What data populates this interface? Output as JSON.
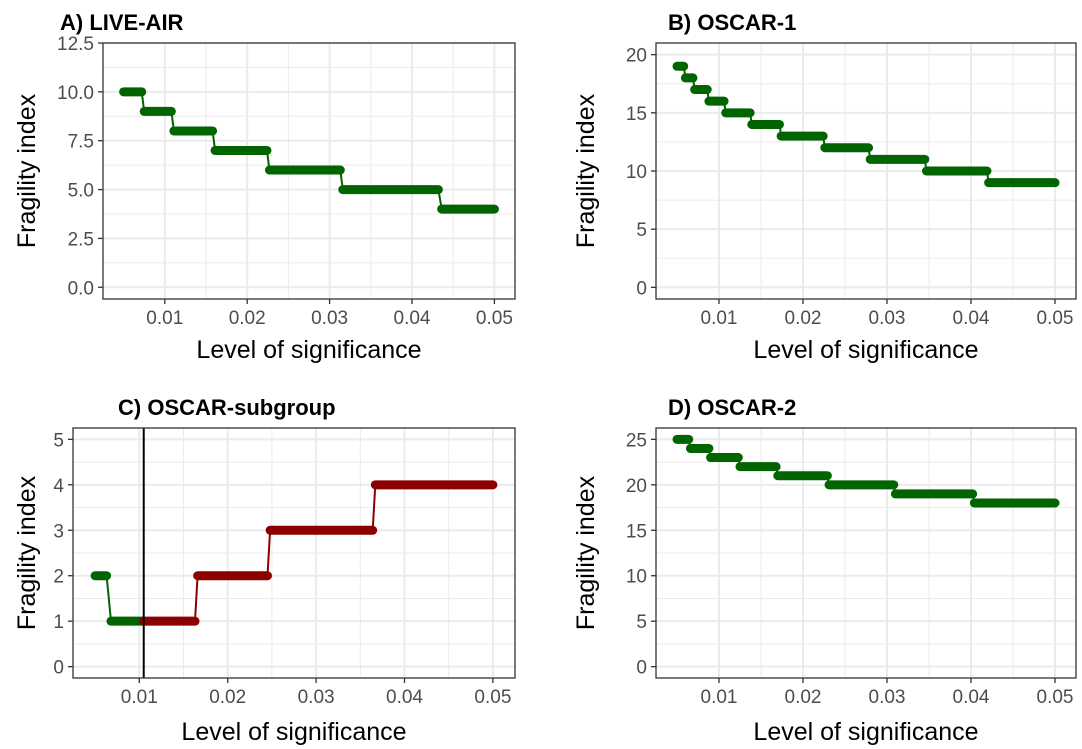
{
  "colors": {
    "green": "#006400",
    "red": "#8b0000",
    "grid": "#ebebeb",
    "frame": "#333333",
    "refline": "#000000"
  },
  "chart_data": [
    {
      "type": "line",
      "title": "A) LIVE-AIR",
      "xlabel": "Level of significance",
      "ylabel": "Fragility index",
      "xlim": [
        0.0025,
        0.0525
      ],
      "ylim": [
        -0.6,
        12.5
      ],
      "xticks": [
        0.01,
        0.02,
        0.03,
        0.04,
        0.05
      ],
      "xtick_labels": [
        "0.01",
        "0.02",
        "0.03",
        "0.04",
        "0.05"
      ],
      "yticks": [
        0,
        2.5,
        5,
        7.5,
        10,
        12.5
      ],
      "ytick_labels": [
        "0.0",
        "2.5",
        "5.0",
        "7.5",
        "10.0",
        "12.5"
      ],
      "grid": true,
      "series": [
        {
          "color": "green",
          "steps": [
            [
              0.005,
              0.0072,
              10
            ],
            [
              0.0075,
              0.0108,
              9
            ],
            [
              0.0111,
              0.0158,
              8
            ],
            [
              0.0161,
              0.0224,
              7
            ],
            [
              0.0227,
              0.0313,
              6
            ],
            [
              0.0316,
              0.0432,
              5
            ],
            [
              0.0436,
              0.05,
              4
            ]
          ]
        }
      ]
    },
    {
      "type": "line",
      "title": "B) OSCAR-1",
      "xlabel": "Level of significance",
      "ylabel": "Fragility index",
      "xlim": [
        0.0025,
        0.0525
      ],
      "ylim": [
        -1,
        21
      ],
      "xticks": [
        0.01,
        0.02,
        0.03,
        0.04,
        0.05
      ],
      "xtick_labels": [
        "0.01",
        "0.02",
        "0.03",
        "0.04",
        "0.05"
      ],
      "yticks": [
        0,
        5,
        10,
        15,
        20
      ],
      "ytick_labels": [
        "0",
        "5",
        "10",
        "15",
        "20"
      ],
      "grid": true,
      "series": [
        {
          "color": "green",
          "steps": [
            [
              0.005,
              0.0058,
              19
            ],
            [
              0.006,
              0.0069,
              18
            ],
            [
              0.0071,
              0.0086,
              17
            ],
            [
              0.0088,
              0.0106,
              16
            ],
            [
              0.0108,
              0.0137,
              15
            ],
            [
              0.0139,
              0.0172,
              14
            ],
            [
              0.0174,
              0.0224,
              13
            ],
            [
              0.0226,
              0.0278,
              12
            ],
            [
              0.028,
              0.0345,
              11
            ],
            [
              0.0347,
              0.0419,
              10
            ],
            [
              0.0421,
              0.05,
              9
            ]
          ]
        }
      ]
    },
    {
      "type": "line",
      "title": "C) OSCAR-subgroup",
      "xlabel": "Level of significance",
      "ylabel": "Fragility index",
      "xlim": [
        0.0025,
        0.0525
      ],
      "ylim": [
        -0.25,
        5.25
      ],
      "xticks": [
        0.01,
        0.02,
        0.03,
        0.04,
        0.05
      ],
      "xtick_labels": [
        "0.01",
        "0.02",
        "0.03",
        "0.04",
        "0.05"
      ],
      "yticks": [
        0,
        1,
        2,
        3,
        4,
        5
      ],
      "ytick_labels": [
        "0",
        "1",
        "2",
        "3",
        "4",
        "5"
      ],
      "grid": true,
      "vline": 0.0105,
      "series": [
        {
          "color": "green",
          "steps": [
            [
              0.005,
              0.0063,
              2
            ],
            [
              0.0068,
              0.0105,
              1
            ]
          ]
        },
        {
          "color": "red",
          "steps": [
            [
              0.0105,
              0.0163,
              1
            ],
            [
              0.0166,
              0.0245,
              2
            ],
            [
              0.0248,
              0.0364,
              3
            ],
            [
              0.0367,
              0.05,
              4
            ]
          ]
        }
      ]
    },
    {
      "type": "line",
      "title": "D) OSCAR-2",
      "xlabel": "Level of significance",
      "ylabel": "Fragility index",
      "xlim": [
        0.0025,
        0.0525
      ],
      "ylim": [
        -1.25,
        26.25
      ],
      "xticks": [
        0.01,
        0.02,
        0.03,
        0.04,
        0.05
      ],
      "xtick_labels": [
        "0.01",
        "0.02",
        "0.03",
        "0.04",
        "0.05"
      ],
      "yticks": [
        0,
        5,
        10,
        15,
        20,
        25
      ],
      "ytick_labels": [
        "0",
        "5",
        "10",
        "15",
        "20",
        "25"
      ],
      "grid": true,
      "series": [
        {
          "color": "green",
          "steps": [
            [
              0.005,
              0.0064,
              25
            ],
            [
              0.0066,
              0.0088,
              24
            ],
            [
              0.009,
              0.0123,
              23
            ],
            [
              0.0125,
              0.0168,
              22
            ],
            [
              0.017,
              0.0229,
              21
            ],
            [
              0.0231,
              0.0308,
              20
            ],
            [
              0.031,
              0.0402,
              19
            ],
            [
              0.0404,
              0.05,
              18
            ]
          ]
        }
      ]
    }
  ]
}
